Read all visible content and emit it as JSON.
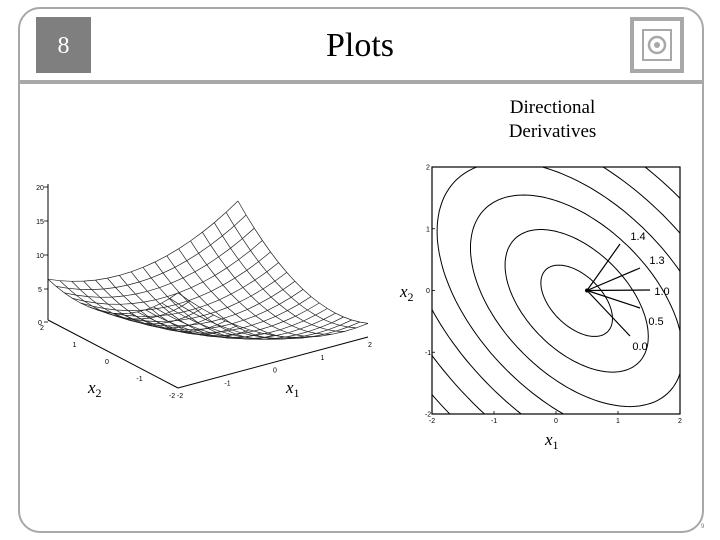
{
  "slide": {
    "number": "8",
    "title": "Plots",
    "page_number": "9"
  },
  "colors": {
    "frame": "#a8a8a8",
    "number_box": "#7f7f7f"
  },
  "caption": [
    "Directional",
    "Derivatives"
  ],
  "surface": {
    "z_ticks": [
      "20",
      "15",
      "10",
      "5",
      "0"
    ],
    "x2_ticks": [
      "2",
      "1",
      "0",
      "-1",
      "-2"
    ],
    "x1_ticks": [
      "-2",
      "-1",
      "0",
      "1",
      "2"
    ],
    "x2_label": "x",
    "x2_sub": "2",
    "x1_label": "x",
    "x1_sub": "1"
  },
  "chart_data": {
    "type": "contour",
    "xlim": [
      -2,
      2
    ],
    "ylim": [
      -2,
      2
    ],
    "x_ticks": [
      "-2",
      "-1",
      "0",
      "1",
      "2"
    ],
    "y_ticks": [
      "-2",
      "-1",
      "0",
      "1",
      "2"
    ],
    "xlabel": "x",
    "xlabel_sub": "1",
    "ylabel": "x",
    "ylabel_sub": "2",
    "point": [
      0.5,
      0
    ],
    "derivatives": [
      "1.4",
      "1.3",
      "1.0",
      "0.5",
      "0.0"
    ]
  }
}
